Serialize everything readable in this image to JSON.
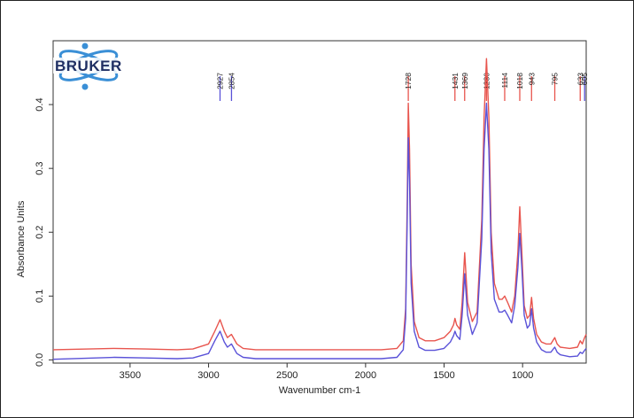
{
  "brand": {
    "logo_text": "BRUKER"
  },
  "chart_data": {
    "type": "line",
    "xlabel": "Wavenumber cm-1",
    "ylabel": "Absorbance Units",
    "xlim": [
      3990,
      595
    ],
    "ylim": [
      -0.005,
      0.5
    ],
    "x_ticks": [
      3500,
      3000,
      2500,
      2000,
      1500,
      1000
    ],
    "y_ticks": [
      0.0,
      0.1,
      0.2,
      0.3,
      0.4
    ],
    "y_tick_labels": [
      "0.0",
      "0.1",
      "0.2",
      "0.3",
      "0.4"
    ],
    "grid": false,
    "series": [
      {
        "color": "#e8554e",
        "x": [
          3990,
          3600,
          3400,
          3200,
          3100,
          3000,
          2960,
          2927,
          2900,
          2880,
          2854,
          2820,
          2780,
          2700,
          2500,
          2300,
          2100,
          1900,
          1800,
          1760,
          1745,
          1735,
          1728,
          1720,
          1710,
          1690,
          1660,
          1620,
          1560,
          1500,
          1460,
          1440,
          1431,
          1420,
          1400,
          1385,
          1369,
          1350,
          1320,
          1290,
          1260,
          1245,
          1230,
          1215,
          1200,
          1180,
          1150,
          1130,
          1114,
          1095,
          1070,
          1050,
          1030,
          1018,
          1005,
          990,
          970,
          955,
          943,
          930,
          910,
          880,
          850,
          820,
          795,
          780,
          760,
          700,
          650,
          633,
          620,
          605,
          595
        ],
        "y": [
          0.016,
          0.018,
          0.017,
          0.016,
          0.017,
          0.025,
          0.045,
          0.063,
          0.045,
          0.035,
          0.04,
          0.025,
          0.018,
          0.016,
          0.016,
          0.016,
          0.016,
          0.016,
          0.018,
          0.03,
          0.08,
          0.25,
          0.402,
          0.33,
          0.15,
          0.06,
          0.035,
          0.03,
          0.03,
          0.035,
          0.045,
          0.055,
          0.065,
          0.055,
          0.048,
          0.09,
          0.168,
          0.09,
          0.06,
          0.075,
          0.22,
          0.38,
          0.472,
          0.38,
          0.2,
          0.12,
          0.095,
          0.095,
          0.1,
          0.09,
          0.075,
          0.1,
          0.17,
          0.24,
          0.17,
          0.085,
          0.065,
          0.07,
          0.098,
          0.065,
          0.04,
          0.028,
          0.025,
          0.025,
          0.035,
          0.025,
          0.02,
          0.018,
          0.02,
          0.03,
          0.025,
          0.035,
          0.04
        ]
      },
      {
        "color": "#5a52d8",
        "x": [
          3990,
          3600,
          3400,
          3200,
          3100,
          3000,
          2960,
          2927,
          2900,
          2880,
          2854,
          2820,
          2780,
          2700,
          2500,
          2300,
          2100,
          1900,
          1800,
          1760,
          1745,
          1735,
          1728,
          1720,
          1710,
          1690,
          1660,
          1620,
          1560,
          1500,
          1460,
          1440,
          1431,
          1420,
          1400,
          1385,
          1369,
          1350,
          1320,
          1290,
          1260,
          1245,
          1230,
          1215,
          1200,
          1180,
          1150,
          1130,
          1114,
          1095,
          1070,
          1050,
          1030,
          1018,
          1005,
          990,
          970,
          955,
          943,
          930,
          910,
          880,
          850,
          820,
          795,
          780,
          760,
          700,
          650,
          633,
          620,
          605,
          595
        ],
        "y": [
          0.001,
          0.004,
          0.003,
          0.002,
          0.003,
          0.01,
          0.03,
          0.045,
          0.028,
          0.02,
          0.025,
          0.01,
          0.004,
          0.002,
          0.002,
          0.002,
          0.002,
          0.002,
          0.004,
          0.016,
          0.065,
          0.22,
          0.348,
          0.28,
          0.12,
          0.045,
          0.02,
          0.015,
          0.015,
          0.018,
          0.028,
          0.038,
          0.045,
          0.038,
          0.032,
          0.07,
          0.135,
          0.07,
          0.04,
          0.058,
          0.19,
          0.33,
          0.402,
          0.33,
          0.17,
          0.095,
          0.075,
          0.075,
          0.078,
          0.07,
          0.058,
          0.085,
          0.145,
          0.198,
          0.145,
          0.07,
          0.05,
          0.055,
          0.08,
          0.05,
          0.028,
          0.016,
          0.012,
          0.012,
          0.02,
          0.012,
          0.008,
          0.005,
          0.006,
          0.012,
          0.01,
          0.015,
          0.018
        ]
      }
    ],
    "peak_labels": [
      {
        "label": "2927",
        "x": 2927,
        "color": "#5a52d8"
      },
      {
        "label": "2854",
        "x": 2854,
        "color": "#5a52d8"
      },
      {
        "label": "1728",
        "x": 1728,
        "color": "#e8554e"
      },
      {
        "label": "1431",
        "x": 1431,
        "color": "#e8554e"
      },
      {
        "label": "1369",
        "x": 1369,
        "color": "#e8554e"
      },
      {
        "label": "1230",
        "x": 1230,
        "color": "#e8554e"
      },
      {
        "label": "1114",
        "x": 1114,
        "color": "#e8554e"
      },
      {
        "label": "1018",
        "x": 1018,
        "color": "#e8554e"
      },
      {
        "label": "943",
        "x": 943,
        "color": "#e8554e"
      },
      {
        "label": "795",
        "x": 795,
        "color": "#e8554e"
      },
      {
        "label": "633",
        "x": 633,
        "color": "#e8554e"
      },
      {
        "label": "605",
        "x": 605,
        "color": "#5a52d8"
      }
    ]
  }
}
